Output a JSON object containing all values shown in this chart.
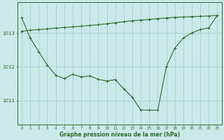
{
  "line1_x": [
    0,
    1,
    2,
    3,
    4,
    5,
    6,
    7,
    8,
    9,
    10,
    11,
    12,
    13,
    14,
    15,
    16,
    17,
    18,
    19,
    20,
    21,
    22,
    23
  ],
  "line1_y": [
    1013.45,
    1012.85,
    1012.45,
    1012.05,
    1011.75,
    1011.65,
    1011.78,
    1011.7,
    1011.73,
    1011.63,
    1011.58,
    1011.62,
    1011.35,
    1011.1,
    1010.72,
    1010.72,
    1010.72,
    1012.0,
    1012.55,
    1012.85,
    1013.0,
    1013.1,
    1013.15,
    1013.52
  ],
  "line2_x": [
    0,
    1,
    2,
    3,
    4,
    5,
    6,
    7,
    8,
    9,
    10,
    11,
    12,
    13,
    14,
    15,
    16,
    17,
    18,
    19,
    20,
    21,
    22,
    23
  ],
  "line2_y": [
    1013.05,
    1013.08,
    1013.1,
    1013.12,
    1013.14,
    1013.16,
    1013.18,
    1013.2,
    1013.22,
    1013.24,
    1013.27,
    1013.3,
    1013.33,
    1013.36,
    1013.38,
    1013.4,
    1013.42,
    1013.44,
    1013.46,
    1013.47,
    1013.48,
    1013.49,
    1013.5,
    1013.52
  ],
  "line_color": "#2d6a2d",
  "bg_color": "#cce8e8",
  "grid_color": "#a8d0d0",
  "xlabel": "Graphe pression niveau de la mer (hPa)",
  "yticks": [
    1011,
    1012,
    1013
  ],
  "xticks": [
    0,
    1,
    2,
    3,
    4,
    5,
    6,
    7,
    8,
    9,
    10,
    11,
    12,
    13,
    14,
    15,
    16,
    17,
    18,
    19,
    20,
    21,
    22,
    23
  ],
  "ylim": [
    1010.3,
    1013.9
  ],
  "xlim": [
    -0.5,
    23.5
  ]
}
